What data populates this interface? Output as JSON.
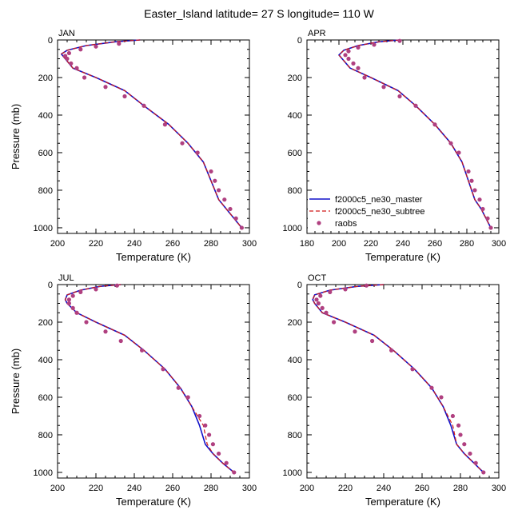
{
  "figure": {
    "title": "Easter_Island  latitude= 27 S longitude= 110 W"
  },
  "styles": {
    "master_color": "#1010c8",
    "subtree_color": "#d01818",
    "raobs_color": "#b04080"
  },
  "chart_data": [
    {
      "type": "line",
      "panel_label": "JAN",
      "xlabel": "Temperature (K)",
      "ylabel": "Pressure (mb)",
      "xlim": [
        200,
        300
      ],
      "xticks": [
        "200",
        "220",
        "240",
        "260",
        "280",
        "300"
      ],
      "ylim": [
        0,
        1030
      ],
      "y_reversed": true,
      "yticks": [
        "0",
        "200",
        "400",
        "600",
        "800",
        "1000"
      ],
      "legend": false,
      "series": [
        {
          "name": "f2000c5_ne30_master",
          "style": "solid",
          "x": [
            243,
            230,
            215,
            205,
            202,
            204,
            208,
            220,
            235,
            245,
            258,
            268,
            276,
            280,
            284,
            288,
            292,
            296
          ],
          "y": [
            0,
            10,
            30,
            55,
            75,
            100,
            150,
            200,
            270,
            350,
            450,
            550,
            650,
            750,
            850,
            900,
            950,
            1000
          ]
        },
        {
          "name": "f2000c5_ne30_subtree",
          "style": "dashed",
          "x": [
            243,
            230,
            215,
            205,
            202,
            204,
            208,
            220,
            235,
            245,
            258,
            268,
            276,
            280,
            284,
            288,
            292,
            296
          ],
          "y": [
            0,
            10,
            30,
            55,
            75,
            100,
            150,
            200,
            270,
            350,
            450,
            550,
            650,
            750,
            850,
            900,
            950,
            1000
          ]
        },
        {
          "name": "raobs",
          "style": "markers",
          "x": [
            232,
            220,
            212,
            206,
            204,
            205,
            207,
            210,
            214,
            225,
            235,
            245,
            256,
            265,
            273,
            280,
            282,
            284,
            287,
            290,
            293,
            296
          ],
          "y": [
            20,
            35,
            50,
            70,
            85,
            100,
            125,
            150,
            200,
            250,
            300,
            350,
            450,
            550,
            600,
            700,
            750,
            800,
            850,
            900,
            950,
            1000
          ]
        }
      ]
    },
    {
      "type": "line",
      "panel_label": "APR",
      "xlabel": "Temperature (K)",
      "ylabel": "",
      "xlim": [
        180,
        300
      ],
      "xticks": [
        "180",
        "200",
        "220",
        "240",
        "260",
        "280",
        "300"
      ],
      "ylim": [
        0,
        1030
      ],
      "y_reversed": true,
      "yticks": [
        "0",
        "200",
        "400",
        "600",
        "800",
        "1000"
      ],
      "legend": true,
      "legend_position": "bottom-left",
      "series": [
        {
          "name": "f2000c5_ne30_master",
          "style": "solid",
          "x": [
            238,
            225,
            212,
            203,
            200,
            202,
            207,
            220,
            237,
            248,
            260,
            270,
            277,
            281,
            285,
            289,
            292,
            295
          ],
          "y": [
            0,
            10,
            30,
            55,
            80,
            100,
            150,
            200,
            270,
            350,
            450,
            550,
            650,
            750,
            850,
            900,
            950,
            1000
          ]
        },
        {
          "name": "f2000c5_ne30_subtree",
          "style": "dashed",
          "x": [
            238,
            225,
            212,
            203,
            200,
            202,
            207,
            220,
            237,
            248,
            260,
            270,
            277,
            281,
            285,
            289,
            292,
            295
          ],
          "y": [
            0,
            10,
            30,
            55,
            80,
            100,
            150,
            200,
            270,
            350,
            450,
            550,
            650,
            750,
            850,
            900,
            950,
            1000
          ]
        },
        {
          "name": "raobs",
          "style": "markers",
          "x": [
            238,
            222,
            212,
            206,
            204,
            206,
            209,
            212,
            216,
            228,
            238,
            248,
            260,
            270,
            275,
            281,
            283,
            285,
            288,
            290,
            293,
            295
          ],
          "y": [
            5,
            25,
            40,
            60,
            80,
            100,
            125,
            150,
            200,
            250,
            300,
            350,
            450,
            550,
            600,
            700,
            750,
            800,
            850,
            900,
            950,
            1000
          ]
        }
      ]
    },
    {
      "type": "line",
      "panel_label": "JUL",
      "xlabel": "Temperature (K)",
      "ylabel": "Pressure (mb)",
      "xlim": [
        200,
        300
      ],
      "xticks": [
        "200",
        "220",
        "240",
        "260",
        "280",
        "300"
      ],
      "ylim": [
        0,
        1030
      ],
      "y_reversed": true,
      "yticks": [
        "0",
        "200",
        "400",
        "600",
        "800",
        "1000"
      ],
      "legend": false,
      "series": [
        {
          "name": "f2000c5_ne30_master",
          "style": "solid",
          "x": [
            233,
            222,
            212,
            205,
            204,
            205,
            210,
            220,
            235,
            245,
            256,
            264,
            270,
            274,
            277,
            281,
            286,
            292
          ],
          "y": [
            0,
            10,
            30,
            55,
            80,
            100,
            150,
            200,
            270,
            350,
            450,
            550,
            650,
            750,
            850,
            900,
            950,
            1000
          ]
        },
        {
          "name": "f2000c5_ne30_subtree",
          "style": "dashed",
          "x": [
            233,
            222,
            212,
            205,
            204,
            205,
            210,
            220,
            235,
            245,
            256,
            264,
            270,
            276,
            278,
            281,
            286,
            292
          ],
          "y": [
            0,
            10,
            30,
            55,
            80,
            100,
            150,
            200,
            270,
            350,
            450,
            550,
            650,
            750,
            850,
            900,
            950,
            1000
          ]
        },
        {
          "name": "raobs",
          "style": "markers",
          "x": [
            231,
            220,
            212,
            208,
            206,
            206,
            208,
            210,
            215,
            225,
            233,
            244,
            255,
            263,
            268,
            274,
            277,
            279,
            281,
            284,
            288,
            292
          ],
          "y": [
            5,
            25,
            40,
            60,
            80,
            100,
            125,
            150,
            200,
            250,
            300,
            350,
            450,
            550,
            600,
            700,
            750,
            800,
            850,
            900,
            950,
            1000
          ]
        }
      ]
    },
    {
      "type": "line",
      "panel_label": "OCT",
      "xlabel": "Temperature (K)",
      "ylabel": "",
      "xlim": [
        200,
        300
      ],
      "xticks": [
        "200",
        "220",
        "240",
        "260",
        "280",
        "300"
      ],
      "ylim": [
        0,
        1030
      ],
      "y_reversed": true,
      "yticks": [
        "0",
        "200",
        "400",
        "600",
        "800",
        "1000"
      ],
      "legend": false,
      "series": [
        {
          "name": "f2000c5_ne30_master",
          "style": "solid",
          "x": [
            240,
            226,
            212,
            204,
            203,
            204,
            208,
            220,
            235,
            245,
            256,
            265,
            271,
            275,
            278,
            282,
            287,
            292
          ],
          "y": [
            0,
            10,
            30,
            55,
            80,
            100,
            150,
            200,
            270,
            350,
            450,
            550,
            650,
            750,
            850,
            900,
            950,
            1000
          ]
        },
        {
          "name": "f2000c5_ne30_subtree",
          "style": "dashed",
          "x": [
            240,
            226,
            212,
            204,
            203,
            204,
            208,
            220,
            235,
            245,
            256,
            265,
            271,
            276,
            278,
            282,
            287,
            292
          ],
          "y": [
            0,
            10,
            30,
            55,
            80,
            100,
            150,
            200,
            270,
            350,
            450,
            550,
            650,
            750,
            850,
            900,
            950,
            1000
          ]
        },
        {
          "name": "raobs",
          "style": "markers",
          "x": [
            231,
            220,
            212,
            207,
            205,
            206,
            208,
            210,
            214,
            225,
            234,
            244,
            255,
            265,
            270,
            276,
            279,
            280,
            282,
            285,
            288,
            292
          ],
          "y": [
            5,
            25,
            40,
            60,
            80,
            100,
            125,
            150,
            200,
            250,
            300,
            350,
            450,
            550,
            600,
            700,
            750,
            800,
            850,
            900,
            950,
            1000
          ]
        }
      ]
    }
  ]
}
